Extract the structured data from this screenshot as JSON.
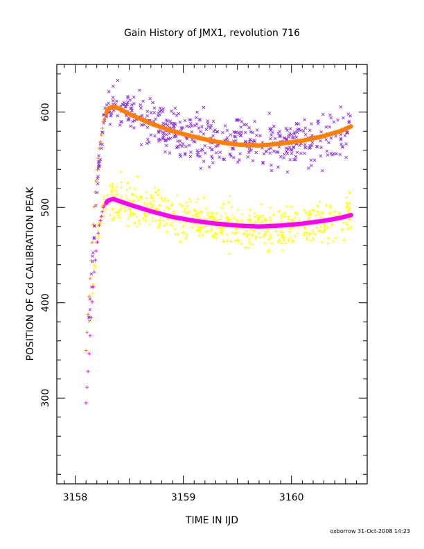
{
  "chart_data": {
    "type": "scatter",
    "title": "Gain History of JMX1, revolution 716",
    "xlabel": "TIME IN IJD",
    "ylabel": "POSITION OF Cd CALIBRATION PEAK",
    "xlim": [
      3157.83,
      3160.7
    ],
    "ylim": [
      210,
      650
    ],
    "xticks": [
      3158,
      3159,
      3160
    ],
    "yticks": [
      300,
      400,
      500,
      600
    ],
    "footer": "oxborrow 31-Oct-2008 14:23",
    "grid": false,
    "series": [
      {
        "marker": "x",
        "color": "#8a2be2",
        "x_range": [
          3158.12,
          3160.55
        ],
        "trend": [
          [
            3158.12,
            370
          ],
          [
            3158.18,
            480
          ],
          [
            3158.22,
            545
          ],
          [
            3158.27,
            595
          ],
          [
            3158.35,
            605
          ],
          [
            3158.6,
            595
          ],
          [
            3158.9,
            580
          ],
          [
            3159.2,
            572
          ],
          [
            3159.6,
            567
          ],
          [
            3160.0,
            570
          ],
          [
            3160.3,
            575
          ],
          [
            3160.55,
            583
          ]
        ],
        "scatter_sd": 18,
        "count": 520
      },
      {
        "marker": "+",
        "color": "#ffff00",
        "x_range": [
          3158.12,
          3160.55
        ],
        "trend": [
          [
            3158.12,
            300
          ],
          [
            3158.15,
            400
          ],
          [
            3158.2,
            470
          ],
          [
            3158.27,
            505
          ],
          [
            3158.35,
            510
          ],
          [
            3158.6,
            500
          ],
          [
            3158.9,
            490
          ],
          [
            3159.2,
            484
          ],
          [
            3159.6,
            478
          ],
          [
            3160.0,
            480
          ],
          [
            3160.3,
            485
          ],
          [
            3160.55,
            490
          ]
        ],
        "scatter_sd": 16,
        "count": 560
      },
      {
        "marker": "fit",
        "color": "#ff8000",
        "points": [
          [
            3158.1,
            350
          ],
          [
            3158.14,
            430
          ],
          [
            3158.18,
            510
          ],
          [
            3158.22,
            560
          ],
          [
            3158.26,
            590
          ],
          [
            3158.3,
            603
          ],
          [
            3158.35,
            606
          ],
          [
            3158.4,
            604
          ],
          [
            3158.5,
            598
          ],
          [
            3158.7,
            588
          ],
          [
            3158.9,
            580
          ],
          [
            3159.1,
            574
          ],
          [
            3159.3,
            569
          ],
          [
            3159.5,
            566
          ],
          [
            3159.7,
            565
          ],
          [
            3159.9,
            567
          ],
          [
            3160.1,
            570
          ],
          [
            3160.3,
            575
          ],
          [
            3160.45,
            580
          ],
          [
            3160.55,
            585
          ]
        ]
      },
      {
        "marker": "fit",
        "color": "#ff00ff",
        "points": [
          [
            3158.1,
            295
          ],
          [
            3158.12,
            330
          ],
          [
            3158.15,
            390
          ],
          [
            3158.18,
            440
          ],
          [
            3158.22,
            480
          ],
          [
            3158.26,
            500
          ],
          [
            3158.3,
            507
          ],
          [
            3158.35,
            509
          ],
          [
            3158.4,
            507
          ],
          [
            3158.5,
            503
          ],
          [
            3158.7,
            496
          ],
          [
            3158.9,
            490
          ],
          [
            3159.1,
            486
          ],
          [
            3159.3,
            483
          ],
          [
            3159.5,
            481
          ],
          [
            3159.7,
            480
          ],
          [
            3159.9,
            481
          ],
          [
            3160.1,
            483
          ],
          [
            3160.3,
            486
          ],
          [
            3160.45,
            489
          ],
          [
            3160.55,
            492
          ]
        ]
      }
    ]
  }
}
